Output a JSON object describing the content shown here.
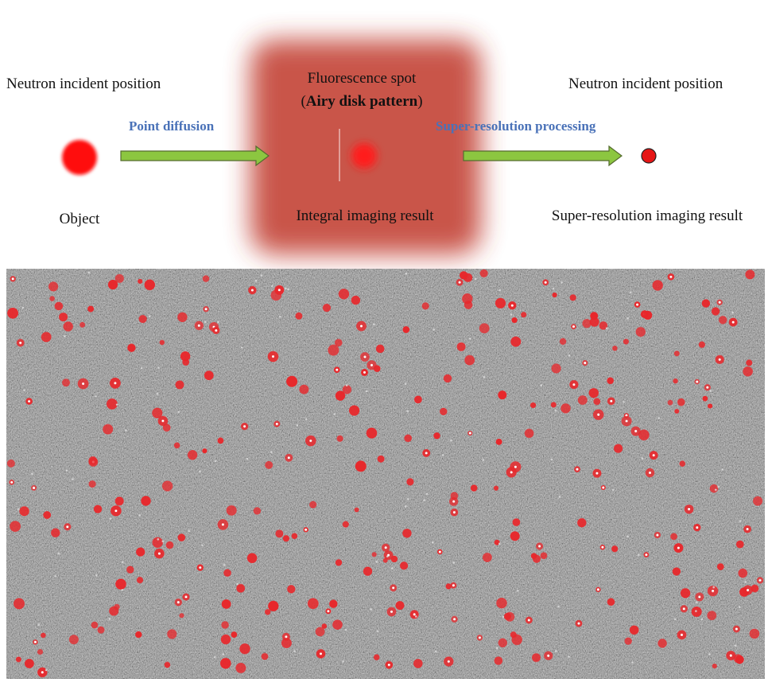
{
  "left": {
    "label_top": "Neutron incident position",
    "caption": "Object"
  },
  "arrow1": {
    "label": "Point diffusion"
  },
  "middle": {
    "title": "Fluorescence spot",
    "subtitle": [
      "(",
      "Airy disk pattern",
      ")"
    ],
    "caption": "Integral imaging result"
  },
  "arrow2": {
    "label": "Super-resolution processing"
  },
  "right": {
    "label_top": "Neutron incident position",
    "caption": "Super-resolution imaging result"
  }
}
